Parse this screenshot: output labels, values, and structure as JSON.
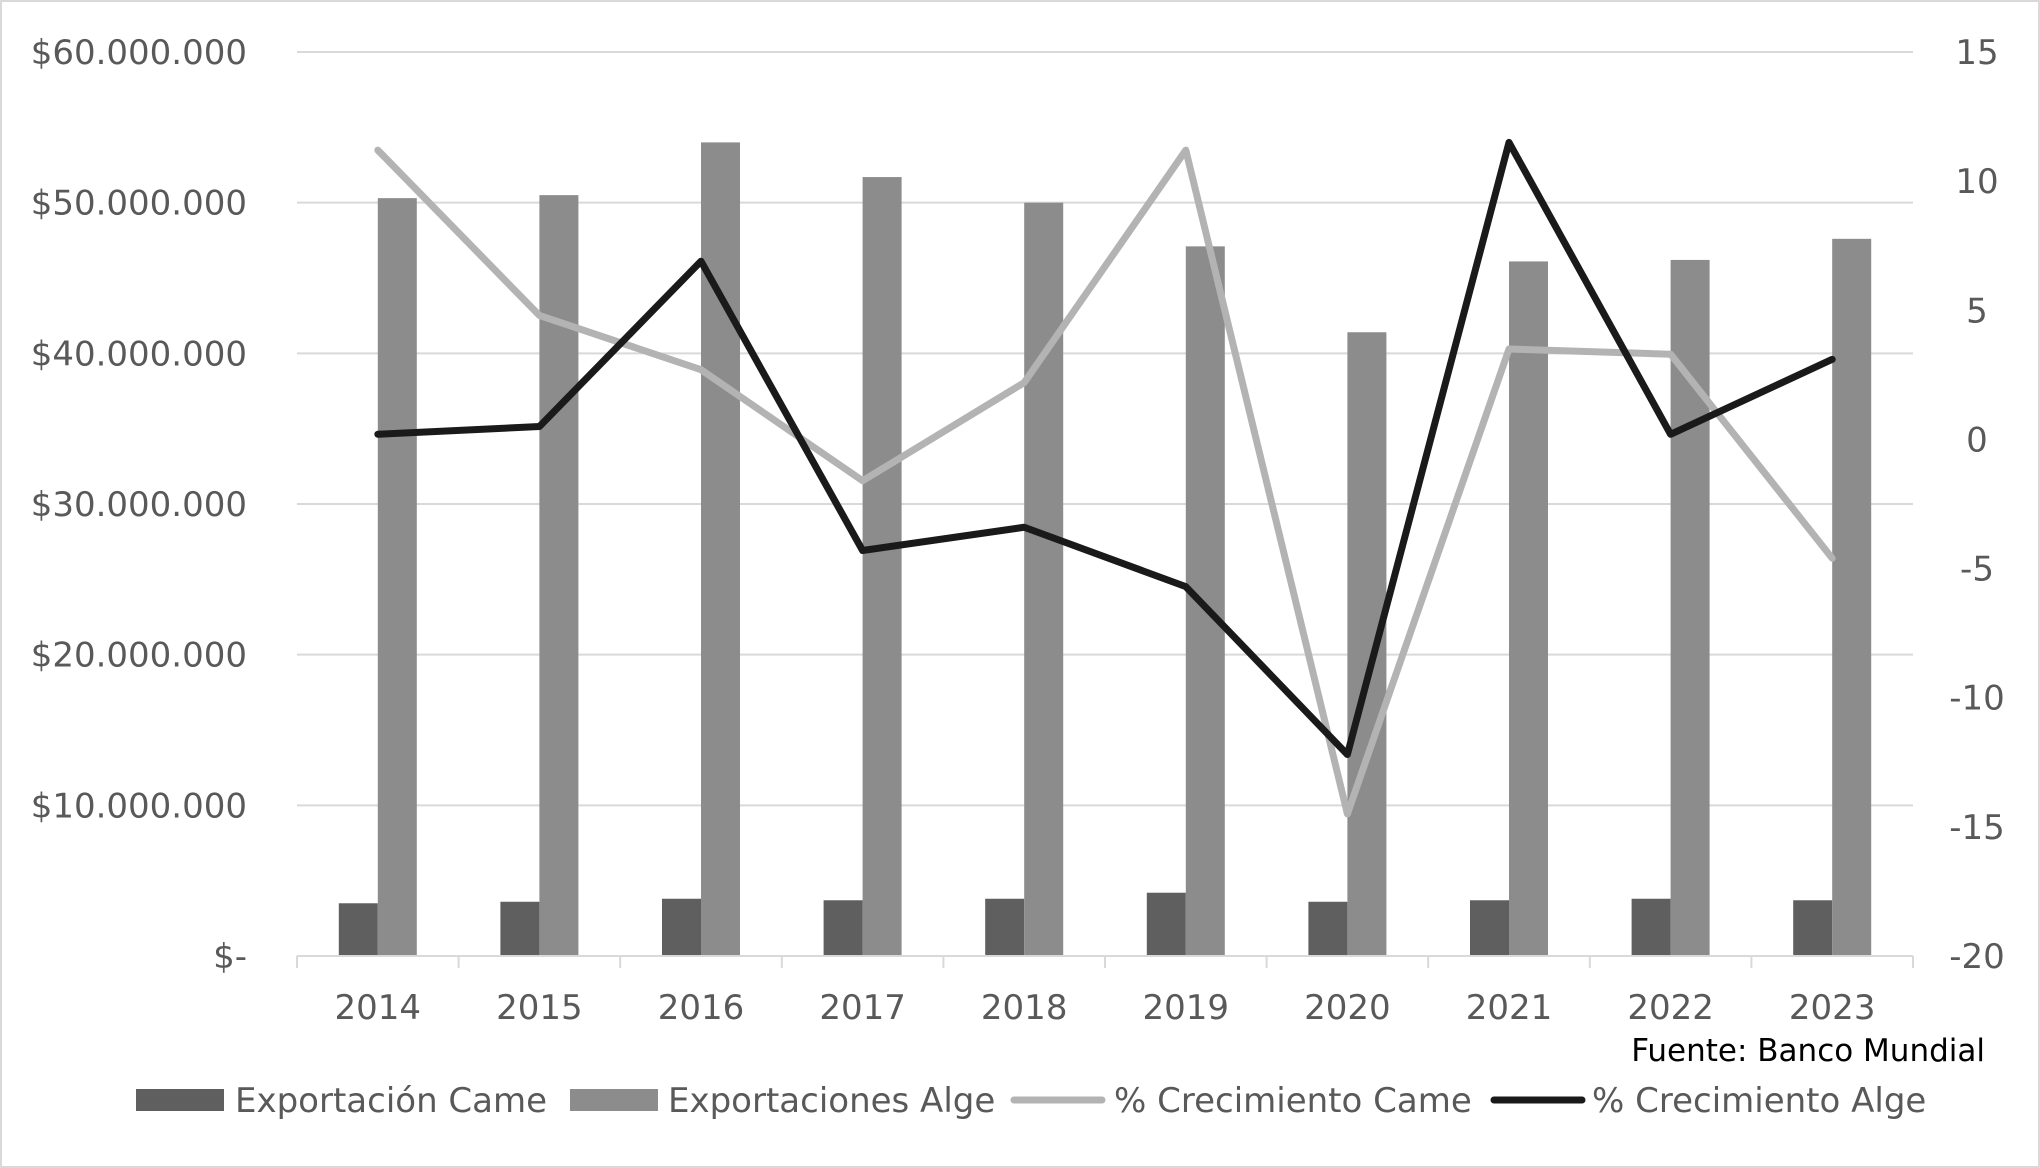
{
  "chart_data": {
    "type": "bar",
    "categories": [
      "2014",
      "2015",
      "2016",
      "2017",
      "2018",
      "2019",
      "2020",
      "2021",
      "2022",
      "2023"
    ],
    "series": [
      {
        "name": "Exportación Came",
        "type": "bar",
        "axis": "left",
        "color": "#5f5f5f",
        "values": [
          3500000,
          3600000,
          3800000,
          3700000,
          3800000,
          4200000,
          3600000,
          3700000,
          3800000,
          3700000
        ]
      },
      {
        "name": "Exportaciones Alge",
        "type": "bar",
        "axis": "left",
        "color": "#8c8c8c",
        "values": [
          50300000,
          50500000,
          54000000,
          51700000,
          50000000,
          47100000,
          41400000,
          46100000,
          46200000,
          47600000
        ]
      },
      {
        "name": "% Crecimiento Came",
        "type": "line",
        "axis": "right",
        "color": "#b3b3b3",
        "values": [
          11.2,
          4.8,
          2.7,
          -1.6,
          2.2,
          11.2,
          -14.5,
          3.5,
          3.3,
          -4.6
        ]
      },
      {
        "name": "% Crecimiento Alge",
        "type": "line",
        "axis": "right",
        "color": "#1a1a1a",
        "values": [
          0.2,
          0.5,
          6.9,
          -4.3,
          -3.4,
          -5.7,
          -12.2,
          11.5,
          0.2,
          3.1
        ]
      }
    ],
    "y_left": {
      "min": 0,
      "max": 60000000,
      "ticks": [
        0,
        10000000,
        20000000,
        30000000,
        40000000,
        50000000,
        60000000
      ],
      "tick_labels": [
        "$-",
        "$10.000.000",
        "$20.000.000",
        "$30.000.000",
        "$40.000.000",
        "$50.000.000",
        "$60.000.000"
      ]
    },
    "y_right": {
      "min": -20,
      "max": 15,
      "ticks": [
        -20,
        -15,
        -10,
        -5,
        0,
        5,
        10,
        15
      ],
      "tick_labels": [
        "-20",
        "-15",
        "-10",
        "-5",
        "0",
        "5",
        "10",
        "15"
      ]
    },
    "source_note": "Fuente: Banco Mundial",
    "grid": true,
    "legend_position": "bottom",
    "title": "",
    "xlabel": "",
    "ylabel": ""
  }
}
